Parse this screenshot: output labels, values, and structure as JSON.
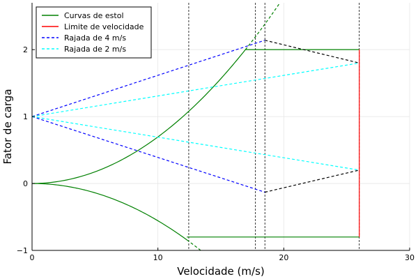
{
  "chart_data": {
    "type": "line",
    "xlabel": "Velocidade (m/s)",
    "ylabel": "Fator de carga",
    "xlim": [
      0,
      30
    ],
    "ylim": [
      -1,
      2.7
    ],
    "x_ticks": [
      0,
      10,
      20,
      30
    ],
    "y_ticks": [
      -1,
      0,
      1,
      2
    ],
    "grid": true,
    "legend_position": "top-left",
    "series": [
      {
        "name": "Curvas de estol",
        "color": "#008000",
        "dash": "solid",
        "segments": [
          {
            "kind": "curve",
            "k": 0.00696,
            "x": [
              0,
              16.95
            ]
          },
          {
            "kind": "curve",
            "k": 0.00696,
            "x": [
              16.95,
              19.8
            ],
            "dash": "dash"
          },
          {
            "kind": "curve",
            "k": -0.00557,
            "x": [
              0,
              12.3
            ]
          },
          {
            "kind": "curve",
            "k": -0.00557,
            "x": [
              12.3,
              13.6
            ],
            "dash": "dash"
          },
          {
            "kind": "line",
            "x": [
              16.95,
              26.0
            ],
            "y": [
              2,
              2
            ]
          },
          {
            "kind": "line",
            "x": [
              12.3,
              26.0
            ],
            "y": [
              -0.8,
              -0.8
            ]
          }
        ]
      },
      {
        "name": "Limite de velocidade",
        "color": "#ff0000",
        "dash": "solid",
        "segments": [
          {
            "kind": "line",
            "x": [
              26.0,
              26.0
            ],
            "y": [
              -0.8,
              2
            ]
          }
        ]
      },
      {
        "name": "Rajada de 4 m/s",
        "color": "#0000ff",
        "dash": "dash",
        "segments": [
          {
            "kind": "line",
            "x": [
              0,
              18.5
            ],
            "y": [
              1,
              2.14
            ]
          },
          {
            "kind": "line",
            "x": [
              0,
              18.5
            ],
            "y": [
              1,
              -0.13
            ]
          }
        ]
      },
      {
        "name": "Rajada de 2 m/s",
        "color": "#00ffff",
        "dash": "dash",
        "segments": [
          {
            "kind": "line",
            "x": [
              0,
              26.0
            ],
            "y": [
              1,
              1.8
            ]
          },
          {
            "kind": "line",
            "x": [
              0,
              26.0
            ],
            "y": [
              1,
              0.2
            ]
          }
        ]
      }
    ],
    "envelope_lines": {
      "color": "#000000",
      "segments": [
        {
          "x": [
            18.5,
            26.0
          ],
          "y": [
            2.14,
            1.8
          ]
        },
        {
          "x": [
            18.5,
            26.0
          ],
          "y": [
            -0.13,
            0.2
          ]
        }
      ]
    },
    "vertical_lines": {
      "color": "#000000",
      "x": [
        12.45,
        17.75,
        18.5,
        26.0
      ]
    }
  }
}
